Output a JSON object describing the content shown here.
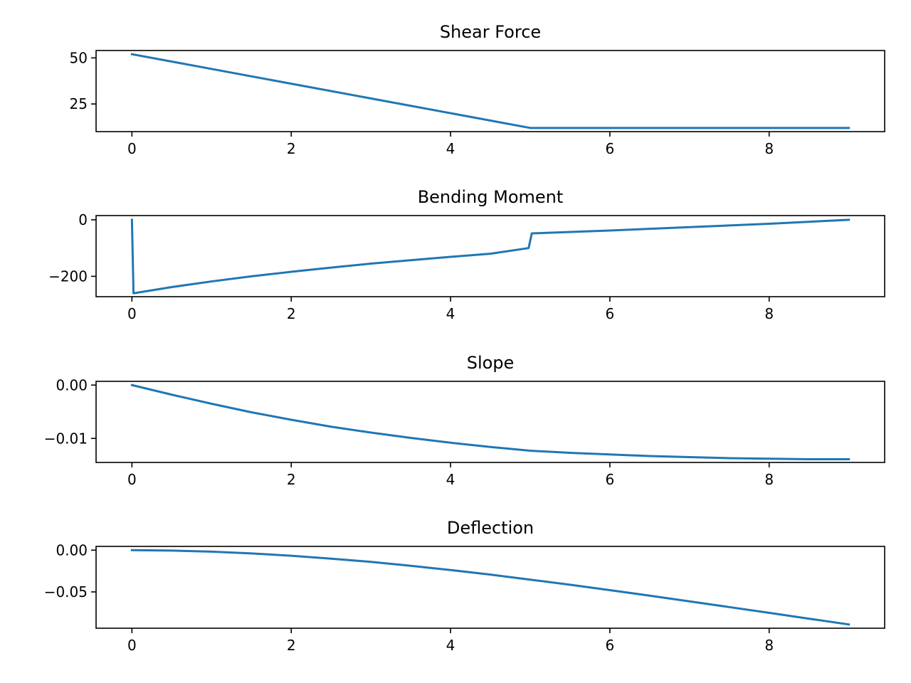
{
  "chart_data": [
    {
      "type": "line",
      "title": "Shear Force",
      "xlabel": "",
      "ylabel": "",
      "xlim": [
        -0.45,
        9.45
      ],
      "ylim": [
        10.0,
        54.0
      ],
      "xticks": [
        0,
        2,
        4,
        6,
        8
      ],
      "yticks": [
        25,
        50
      ],
      "ytick_labels": [
        "25",
        "50"
      ],
      "grid": false,
      "series": [
        {
          "color": "#1f77b4",
          "x": [
            0,
            5,
            9
          ],
          "y": [
            52,
            12,
            12
          ]
        }
      ]
    },
    {
      "type": "line",
      "title": "Bending Moment",
      "xlabel": "",
      "ylabel": "",
      "xlim": [
        -0.45,
        9.45
      ],
      "ylim": [
        -272,
        15
      ],
      "xticks": [
        0,
        2,
        4,
        6,
        8
      ],
      "yticks": [
        -200,
        0
      ],
      "ytick_labels": [
        "−200",
        "0"
      ],
      "grid": false,
      "series": [
        {
          "color": "#1f77b4",
          "x": [
            0,
            0.02,
            0.5,
            1,
            1.5,
            2,
            2.5,
            3,
            3.5,
            4,
            4.5,
            4.98,
            5.02,
            6,
            7,
            8,
            9
          ],
          "y": [
            0,
            -260,
            -238,
            -218,
            -200,
            -184,
            -169,
            -155,
            -143,
            -131,
            -120,
            -100,
            -48,
            -38,
            -26,
            -14,
            0
          ]
        }
      ]
    },
    {
      "type": "line",
      "title": "Slope",
      "xlabel": "",
      "ylabel": "",
      "xlim": [
        -0.45,
        9.45
      ],
      "ylim": [
        -0.0145,
        0.0007
      ],
      "xticks": [
        0,
        2,
        4,
        6,
        8
      ],
      "yticks": [
        -0.01,
        0.0
      ],
      "ytick_labels": [
        "−0.01",
        "0.00"
      ],
      "grid": false,
      "series": [
        {
          "color": "#1f77b4",
          "x": [
            0,
            0.5,
            1,
            1.5,
            2,
            2.5,
            3,
            3.5,
            4,
            4.5,
            5,
            5.5,
            6,
            6.5,
            7,
            7.5,
            8,
            8.5,
            9
          ],
          "y": [
            0,
            -0.0018,
            -0.0035,
            -0.0051,
            -0.0065,
            -0.0078,
            -0.0089,
            -0.0099,
            -0.0108,
            -0.0116,
            -0.0123,
            -0.0127,
            -0.013,
            -0.0133,
            -0.0135,
            -0.0137,
            -0.0138,
            -0.0139,
            -0.0139
          ]
        }
      ]
    },
    {
      "type": "line",
      "title": "Deflection",
      "xlabel": "",
      "ylabel": "",
      "xlim": [
        -0.45,
        9.45
      ],
      "ylim": [
        -0.0935,
        0.0045
      ],
      "xticks": [
        0,
        2,
        4,
        6,
        8
      ],
      "yticks": [
        -0.05,
        0.0
      ],
      "ytick_labels": [
        "−0.05",
        "0.00"
      ],
      "grid": false,
      "series": [
        {
          "color": "#1f77b4",
          "x": [
            0,
            0.5,
            1,
            1.5,
            2,
            2.5,
            3,
            3.5,
            4,
            4.5,
            5,
            5.5,
            6,
            6.5,
            7,
            7.5,
            8,
            8.5,
            9
          ],
          "y": [
            0,
            -0.0005,
            -0.0018,
            -0.0039,
            -0.0067,
            -0.0102,
            -0.014,
            -0.0187,
            -0.0238,
            -0.0293,
            -0.0353,
            -0.0414,
            -0.0479,
            -0.0545,
            -0.0613,
            -0.0682,
            -0.0751,
            -0.0821,
            -0.089
          ]
        }
      ]
    }
  ]
}
